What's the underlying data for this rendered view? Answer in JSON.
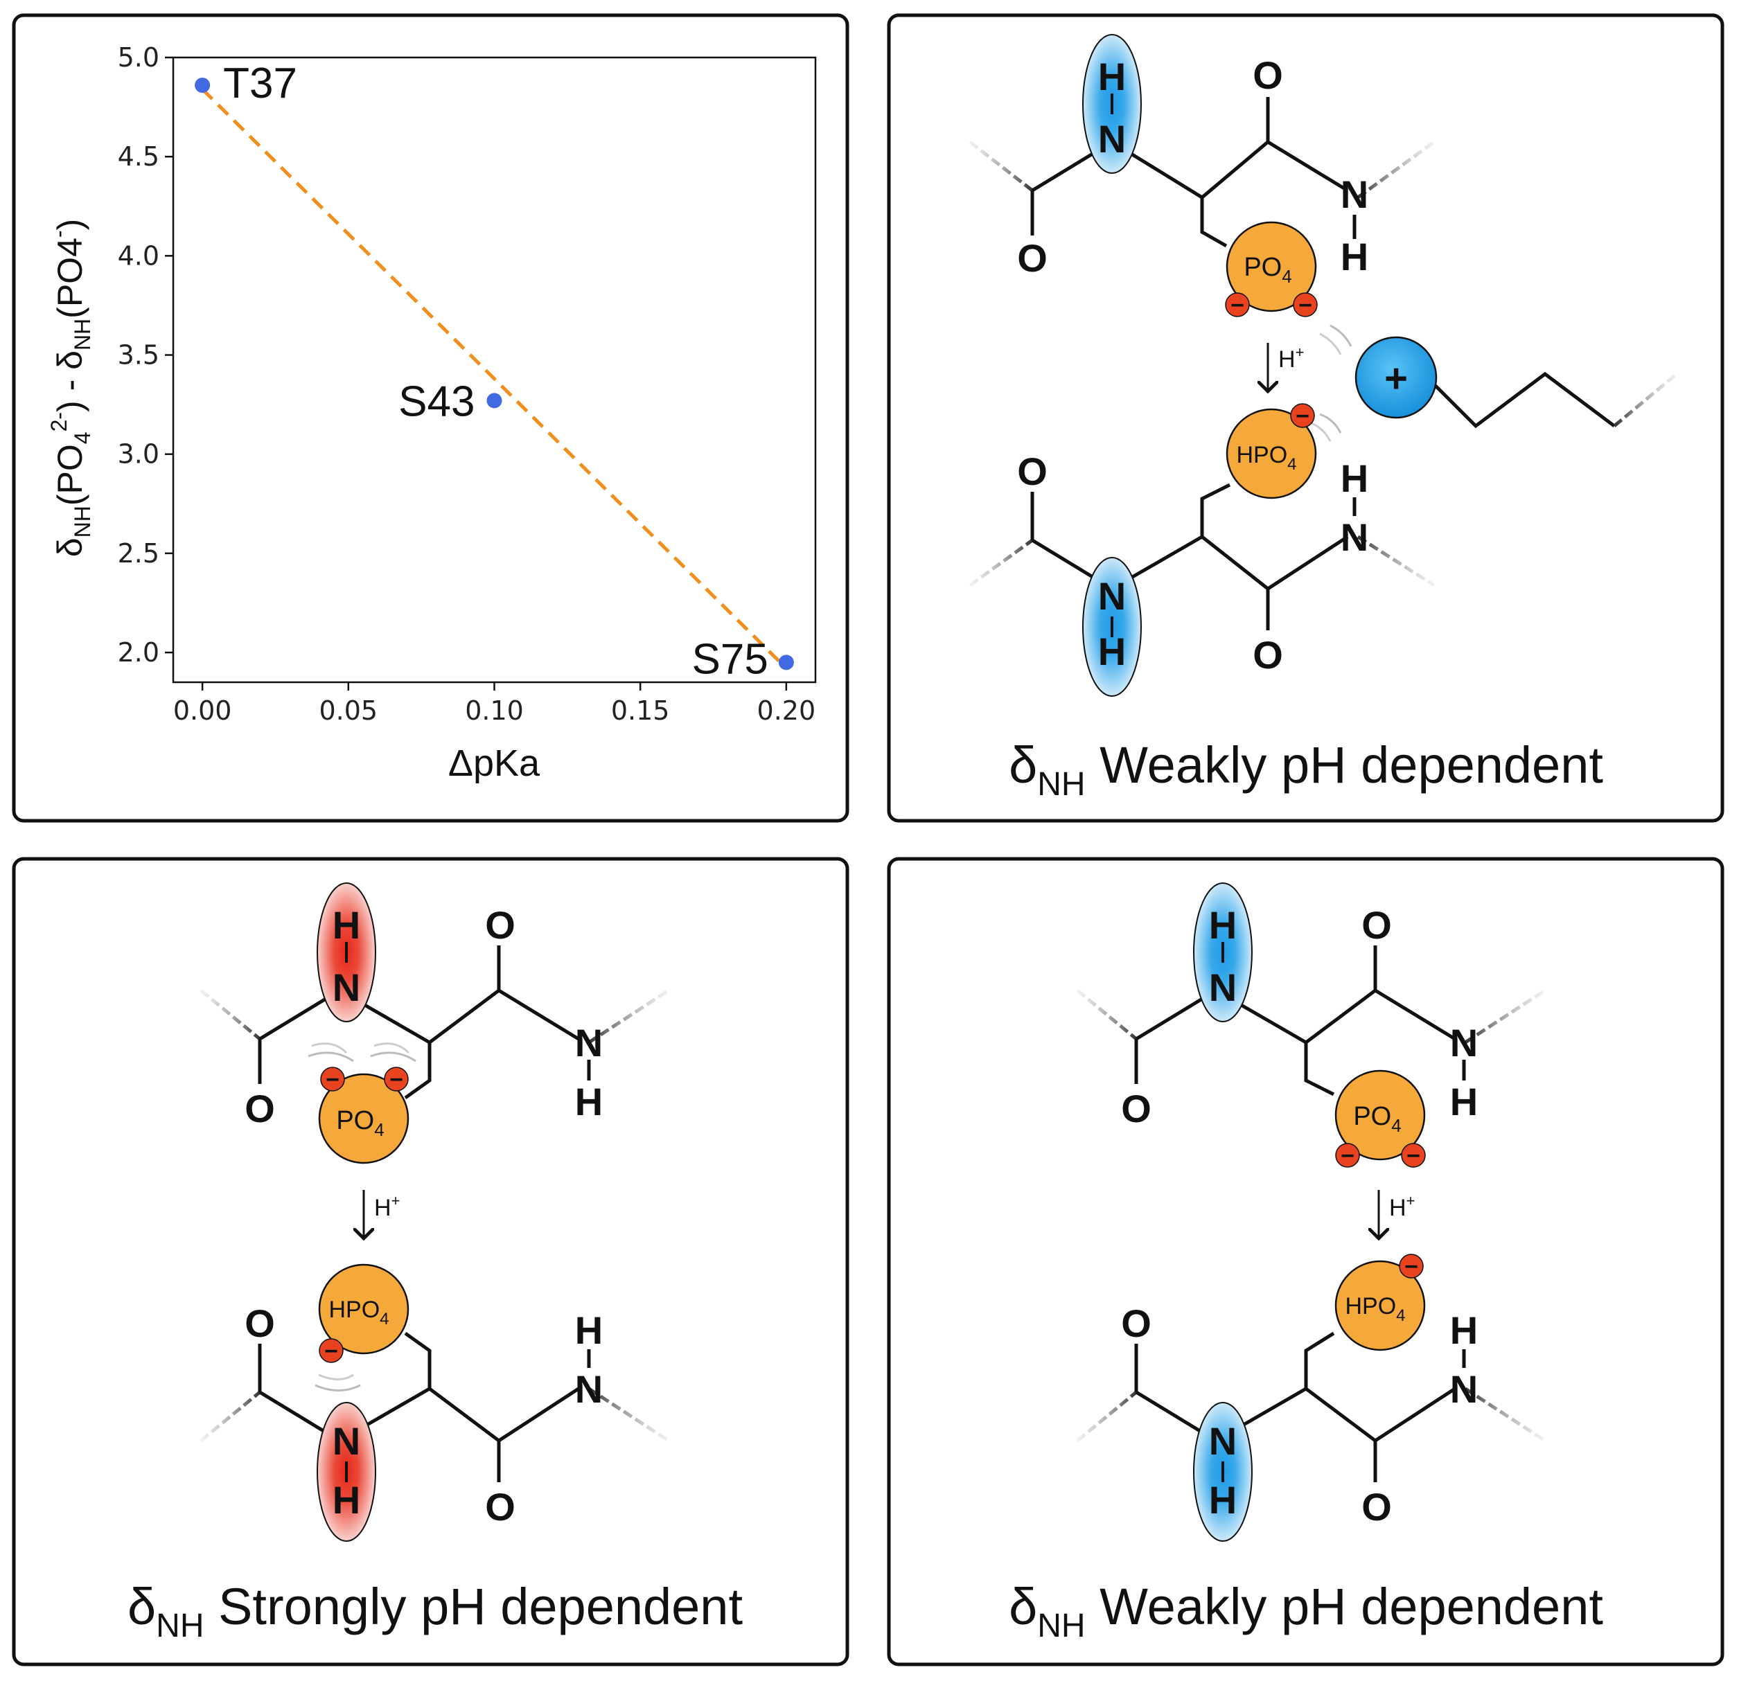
{
  "chart_data": {
    "type": "scatter",
    "xlabel": "ΔpKa",
    "ylabel_parts": {
      "delta": "δ",
      "sub1": "NH",
      "pre": "(PO",
      "sub2": "4",
      "sup2": "2-",
      "mid": ") - δ",
      "sub3": "NH",
      "pre2": "(PO4",
      "sup3": "-",
      "end": ")"
    },
    "xlim": [
      0.0,
      0.2
    ],
    "ylim": [
      2.0,
      5.0
    ],
    "xticks": [
      "0.00",
      "0.05",
      "0.10",
      "0.15",
      "0.20"
    ],
    "yticks": [
      "2.0",
      "2.5",
      "3.0",
      "3.5",
      "4.0",
      "4.5",
      "5.0"
    ],
    "points": [
      {
        "label": "T37",
        "x": 0.0,
        "y": 4.86
      },
      {
        "label": "S43",
        "x": 0.1,
        "y": 3.27
      },
      {
        "label": "S75",
        "x": 0.2,
        "y": 1.95
      }
    ],
    "fit_line": {
      "x": [
        0.0,
        0.2
      ],
      "y": [
        4.84,
        1.92
      ]
    },
    "point_color": "#4169e1",
    "line_color": "#f28e1c"
  },
  "atoms": {
    "H": "H",
    "N": "N",
    "O": "O",
    "plus": "+",
    "minus": "−"
  },
  "groups": {
    "po4": "PO",
    "po4_sub": "4",
    "hpo4": "HPO",
    "hpo4_sub": "4"
  },
  "arrow_label": {
    "main": "H",
    "sup": "+"
  },
  "panels": {
    "top_right": {
      "delta": "δ",
      "sub": "NH",
      "text": " Weakly pH dependent"
    },
    "bottom_left": {
      "delta": "δ",
      "sub": "NH",
      "text": " Strongly pH dependent"
    },
    "bottom_right": {
      "delta": "δ",
      "sub": "NH",
      "text": " Weakly pH dependent"
    }
  },
  "colors": {
    "blue": "#2aa3e6",
    "red": "#e53a2a",
    "orange": "#f6a93b",
    "charge": "#e8421e"
  }
}
